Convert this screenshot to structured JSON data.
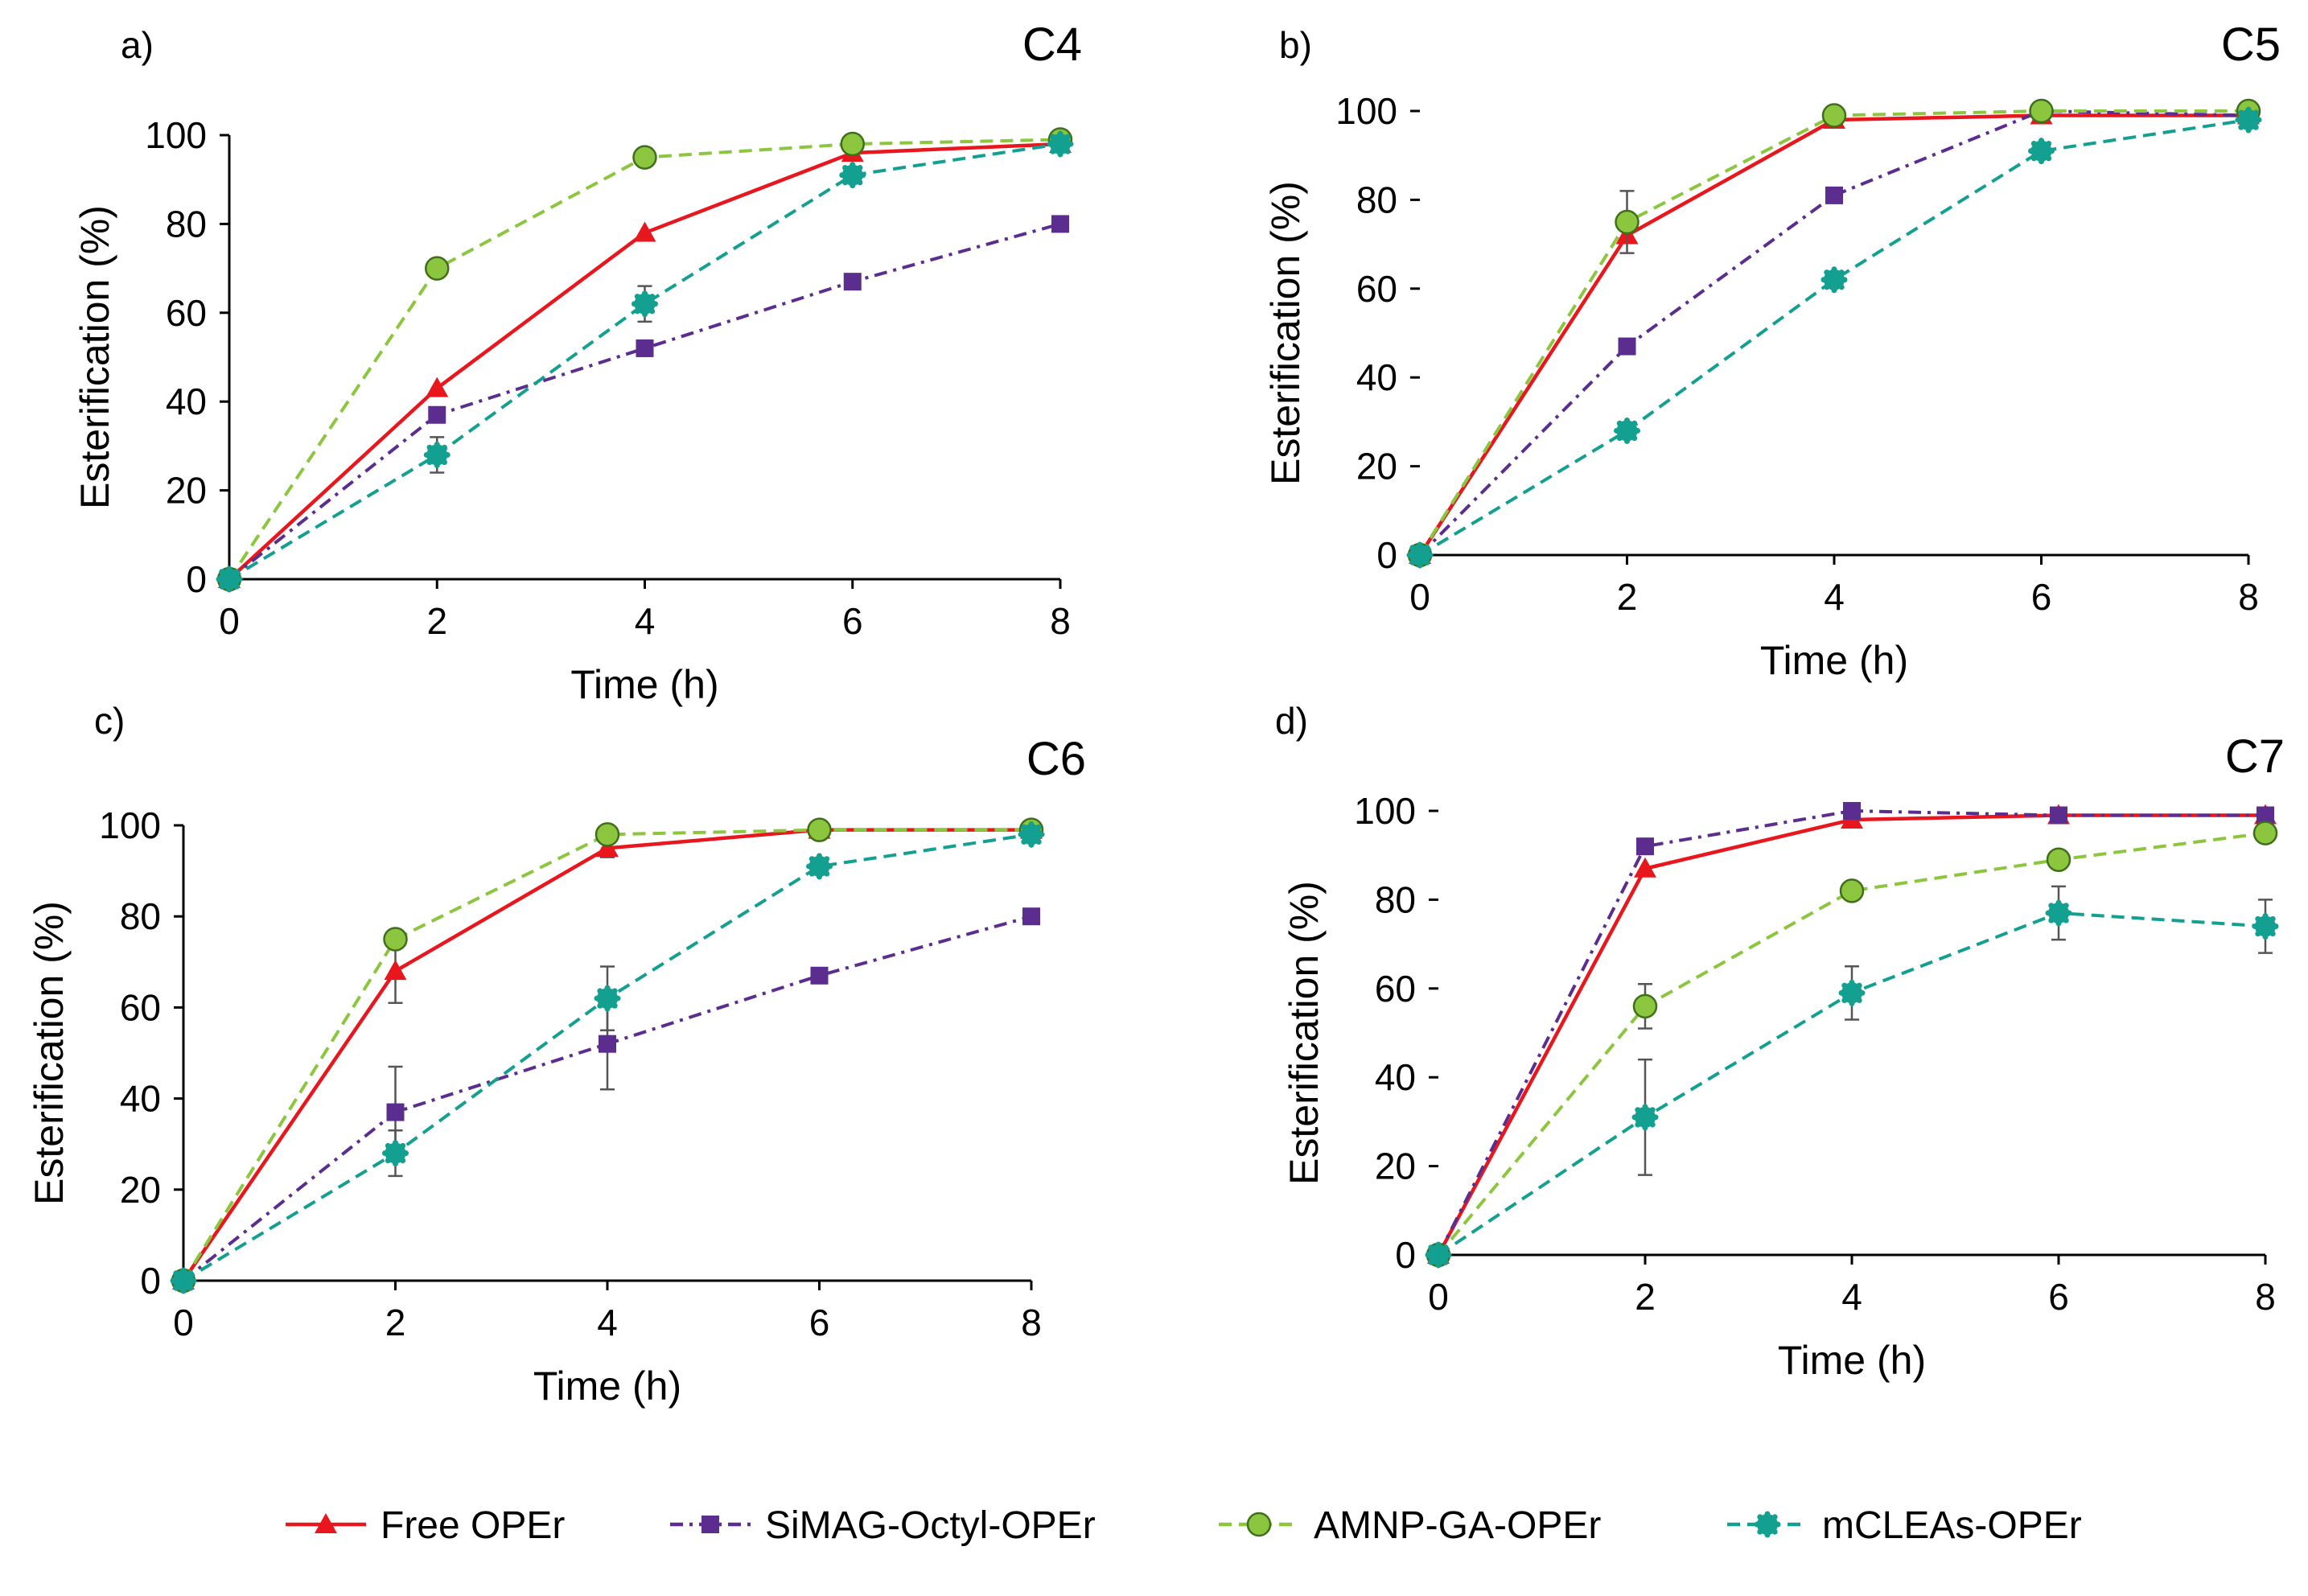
{
  "series_styles": [
    {
      "name": "Free OPEr",
      "color": "#e8161d",
      "dash": "solid",
      "marker": "triangle"
    },
    {
      "name": "SiMAG-Octyl-OPEr",
      "color": "#5b2d8f",
      "dash": "dashdot",
      "marker": "square"
    },
    {
      "name": "AMNP-GA-OPEr",
      "color": "#8cc63f",
      "dash": "dashed",
      "marker": "circle"
    },
    {
      "name": "mCLEAs-OPEr",
      "color": "#14a090",
      "dash": "dashed",
      "marker": "dot"
    }
  ],
  "legend": {
    "items": [
      "Free OPEr",
      "SiMAG-Octyl-OPEr",
      "AMNP-GA-OPEr",
      "mCLEAs-OPEr"
    ]
  },
  "chart_data": [
    {
      "type": "line",
      "panel_label": "a)",
      "title": "C4",
      "xlabel": "Time (h)",
      "ylabel": "Esterification (%)",
      "x": [
        0,
        2,
        4,
        6,
        8
      ],
      "xticks": [
        "0",
        "2",
        "4",
        "6",
        "8"
      ],
      "yticks": [
        "0",
        "20",
        "40",
        "60",
        "80",
        "100"
      ],
      "xlim": [
        0,
        8
      ],
      "ylim": [
        0,
        100
      ],
      "series": [
        {
          "name": "Free OPEr",
          "values": [
            0,
            43,
            78,
            96,
            98
          ],
          "errors": [
            0,
            0,
            0,
            0,
            0
          ]
        },
        {
          "name": "SiMAG-Octyl-OPEr",
          "values": [
            0,
            37,
            52,
            67,
            80
          ],
          "errors": [
            0,
            0,
            0,
            0,
            0
          ]
        },
        {
          "name": "AMNP-GA-OPEr",
          "values": [
            0,
            70,
            95,
            98,
            99
          ],
          "errors": [
            0,
            0,
            0,
            0,
            0
          ]
        },
        {
          "name": "mCLEAs-OPEr",
          "values": [
            0,
            28,
            62,
            91,
            98
          ],
          "errors": [
            0,
            4,
            4,
            0,
            0
          ]
        }
      ]
    },
    {
      "type": "line",
      "panel_label": "b)",
      "title": "C5",
      "xlabel": "Time (h)",
      "ylabel": "Esterification (%)",
      "x": [
        0,
        2,
        4,
        6,
        8
      ],
      "xticks": [
        "0",
        "2",
        "4",
        "6",
        "8"
      ],
      "yticks": [
        "0",
        "20",
        "40",
        "60",
        "80",
        "100"
      ],
      "xlim": [
        0,
        8
      ],
      "ylim": [
        0,
        100
      ],
      "series": [
        {
          "name": "Free OPEr",
          "values": [
            0,
            72,
            98,
            99,
            99
          ],
          "errors": [
            0,
            0,
            0,
            0,
            0
          ]
        },
        {
          "name": "SiMAG-Octyl-OPEr",
          "values": [
            0,
            47,
            81,
            100,
            99
          ],
          "errors": [
            0,
            0,
            0,
            0,
            0
          ]
        },
        {
          "name": "AMNP-GA-OPEr",
          "values": [
            0,
            75,
            99,
            100,
            100
          ],
          "errors": [
            0,
            7,
            0,
            0,
            0
          ]
        },
        {
          "name": "mCLEAs-OPEr",
          "values": [
            0,
            28,
            62,
            91,
            98
          ],
          "errors": [
            0,
            0,
            0,
            0,
            0
          ]
        }
      ]
    },
    {
      "type": "line",
      "panel_label": "c)",
      "title": "C6",
      "xlabel": "Time (h)",
      "ylabel": "Esterification (%)",
      "x": [
        0,
        2,
        4,
        6,
        8
      ],
      "xticks": [
        "0",
        "2",
        "4",
        "6",
        "8"
      ],
      "yticks": [
        "0",
        "20",
        "40",
        "60",
        "80",
        "100"
      ],
      "xlim": [
        0,
        8
      ],
      "ylim": [
        0,
        100
      ],
      "series": [
        {
          "name": "Free OPEr",
          "values": [
            0,
            68,
            95,
            99,
            99
          ],
          "errors": [
            0,
            7,
            2,
            0,
            0
          ]
        },
        {
          "name": "SiMAG-Octyl-OPEr",
          "values": [
            0,
            37,
            52,
            67,
            80
          ],
          "errors": [
            0,
            10,
            10,
            0,
            0
          ]
        },
        {
          "name": "AMNP-GA-OPEr",
          "values": [
            0,
            75,
            98,
            99,
            99
          ],
          "errors": [
            0,
            0,
            0,
            0,
            0
          ]
        },
        {
          "name": "mCLEAs-OPEr",
          "values": [
            0,
            28,
            62,
            91,
            98
          ],
          "errors": [
            0,
            5,
            7,
            0,
            0
          ]
        }
      ]
    },
    {
      "type": "line",
      "panel_label": "d)",
      "title": "C7",
      "xlabel": "Time (h)",
      "ylabel": "Esterification (%)",
      "x": [
        0,
        2,
        4,
        6,
        8
      ],
      "xticks": [
        "0",
        "2",
        "4",
        "6",
        "8"
      ],
      "yticks": [
        "0",
        "20",
        "40",
        "60",
        "80",
        "100"
      ],
      "xlim": [
        0,
        8
      ],
      "ylim": [
        0,
        100
      ],
      "series": [
        {
          "name": "Free OPEr",
          "values": [
            0,
            87,
            98,
            99,
            99
          ],
          "errors": [
            0,
            0,
            0,
            0,
            0
          ]
        },
        {
          "name": "SiMAG-Octyl-OPEr",
          "values": [
            0,
            92,
            100,
            99,
            99
          ],
          "errors": [
            0,
            0,
            0,
            0,
            0
          ]
        },
        {
          "name": "AMNP-GA-OPEr",
          "values": [
            0,
            56,
            82,
            89,
            95
          ],
          "errors": [
            0,
            5,
            0,
            0,
            0
          ]
        },
        {
          "name": "mCLEAs-OPEr",
          "values": [
            0,
            31,
            59,
            77,
            74
          ],
          "errors": [
            0,
            13,
            6,
            6,
            6
          ]
        }
      ]
    }
  ]
}
